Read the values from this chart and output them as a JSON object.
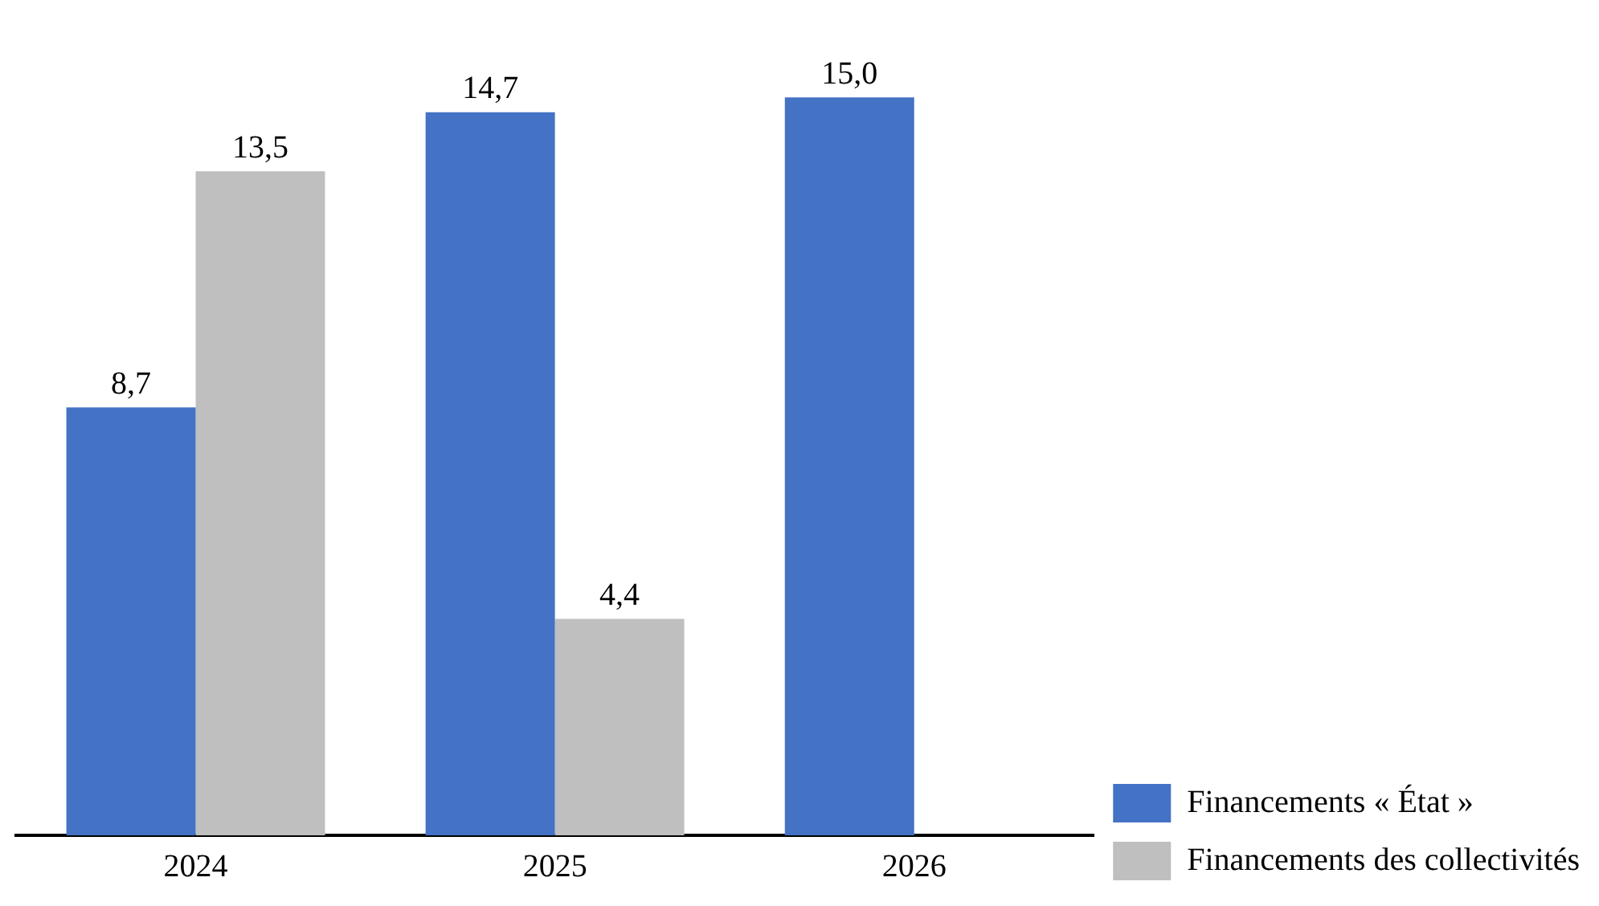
{
  "chart_data": {
    "type": "bar",
    "categories": [
      "2024",
      "2025",
      "2026"
    ],
    "series": [
      {
        "name": "Financements « État »",
        "color": "#4472c4",
        "values": [
          8.7,
          14.7,
          15.0
        ],
        "value_labels": [
          "8,7",
          "14,7",
          "15,0"
        ]
      },
      {
        "name": "Financements des collectivités",
        "color": "#bfbfbf",
        "values": [
          13.5,
          4.4,
          null
        ],
        "value_labels": [
          "13,5",
          "4,4",
          null
        ]
      }
    ],
    "legend": "bottom right",
    "grid": false
  }
}
